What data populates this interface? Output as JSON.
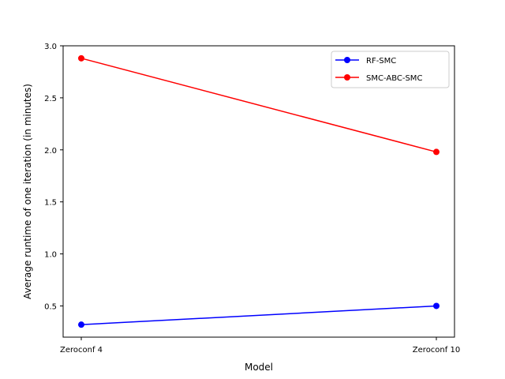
{
  "chart_data": {
    "type": "line",
    "title": "",
    "xlabel": "Model",
    "ylabel": "Average runtime of one iteration (in minutes)",
    "categories": [
      "Zeroconf 4",
      "Zeroconf 10"
    ],
    "series": [
      {
        "name": "RF-SMC",
        "values": [
          0.32,
          0.5
        ],
        "color": "#0000ff"
      },
      {
        "name": "SMC-ABC-SMC",
        "values": [
          2.88,
          1.98
        ],
        "color": "#ff0000"
      }
    ],
    "yticks": [
      "0.5",
      "1.0",
      "1.5",
      "2.0",
      "2.5",
      "3.0"
    ],
    "ylim": [
      0.2,
      3.0
    ],
    "grid": false,
    "legend_position": "top-right",
    "marker": "circle"
  }
}
